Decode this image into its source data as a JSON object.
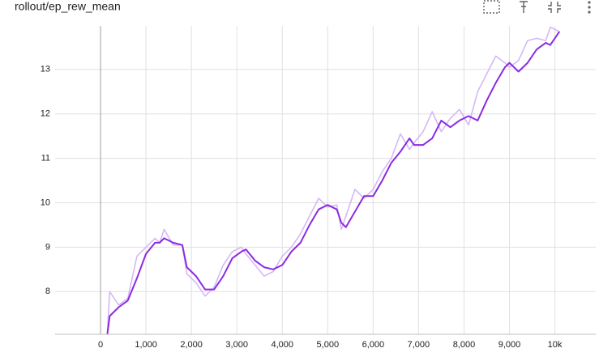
{
  "chart_data": {
    "type": "line",
    "title": "rollout/ep_rew_mean",
    "x": [
      150,
      200,
      400,
      600,
      800,
      1000,
      1200,
      1300,
      1400,
      1600,
      1800,
      1900,
      2100,
      2300,
      2500,
      2700,
      2900,
      3100,
      3200,
      3400,
      3600,
      3800,
      4000,
      4200,
      4400,
      4600,
      4800,
      5000,
      5200,
      5300,
      5400,
      5600,
      5800,
      6000,
      6200,
      6400,
      6600,
      6800,
      6900,
      7100,
      7300,
      7500,
      7700,
      7900,
      8100,
      8300,
      8500,
      8700,
      8900,
      9000,
      9200,
      9400,
      9600,
      9800,
      9900,
      10100
    ],
    "series": [
      {
        "color": "#d6b8f5",
        "values": [
          7.1,
          8.0,
          7.7,
          7.85,
          8.8,
          9.0,
          9.2,
          9.1,
          9.4,
          9.05,
          9.05,
          8.4,
          8.2,
          7.9,
          8.1,
          8.6,
          8.9,
          9.0,
          8.85,
          8.6,
          8.35,
          8.45,
          8.8,
          9.0,
          9.3,
          9.7,
          10.1,
          9.9,
          9.95,
          9.4,
          9.7,
          10.3,
          10.1,
          10.3,
          10.7,
          11.0,
          11.55,
          11.2,
          11.35,
          11.6,
          12.05,
          11.6,
          11.9,
          12.1,
          11.75,
          12.5,
          12.9,
          13.3,
          13.15,
          13.05,
          13.2,
          13.65,
          13.7,
          13.65,
          13.95,
          13.85
        ]
      },
      {
        "color": "#8a2be2",
        "values": [
          7.05,
          7.45,
          7.65,
          7.8,
          8.3,
          8.85,
          9.1,
          9.1,
          9.2,
          9.1,
          9.05,
          8.55,
          8.35,
          8.05,
          8.05,
          8.35,
          8.75,
          8.9,
          8.95,
          8.7,
          8.55,
          8.5,
          8.6,
          8.9,
          9.1,
          9.5,
          9.85,
          9.95,
          9.85,
          9.55,
          9.45,
          9.8,
          10.15,
          10.15,
          10.5,
          10.9,
          11.15,
          11.45,
          11.3,
          11.3,
          11.45,
          11.85,
          11.7,
          11.85,
          11.95,
          11.85,
          12.3,
          12.7,
          13.05,
          13.15,
          12.95,
          13.15,
          13.45,
          13.6,
          13.55,
          13.85
        ]
      }
    ],
    "xlim": [
      -1000,
      10900
    ],
    "xticks": [
      0,
      {
        "value": 1000,
        "label": "1,000"
      },
      {
        "value": 2000,
        "label": "2,000"
      },
      {
        "value": 3000,
        "label": "3,000"
      },
      {
        "value": 4000,
        "label": "4,000"
      },
      {
        "value": 5000,
        "label": "5,000"
      },
      {
        "value": 6000,
        "label": "6,000"
      },
      {
        "value": 7000,
        "label": "7,000"
      },
      {
        "value": 8000,
        "label": "8,000"
      },
      {
        "value": 9000,
        "label": "9,000"
      },
      {
        "value": 10000,
        "label": "10k"
      }
    ],
    "ylim": [
      7.04,
      13.98
    ],
    "yticks": [
      8,
      9,
      10,
      11,
      12,
      13
    ],
    "grid": true
  }
}
